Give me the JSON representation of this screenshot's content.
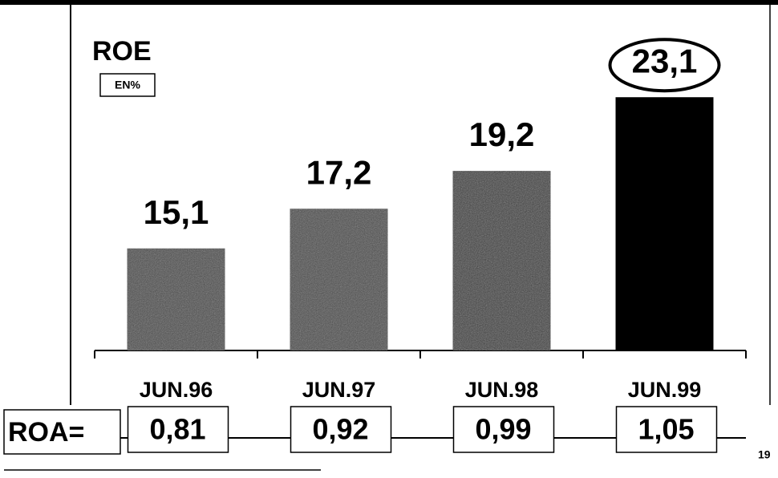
{
  "chart_data": {
    "type": "bar",
    "title": "ROE",
    "subtitle": "EN%",
    "categories": [
      "JUN.96",
      "JUN.97",
      "JUN.98",
      "JUN.99"
    ],
    "values": [
      15.1,
      17.2,
      19.2,
      23.1
    ],
    "value_labels": [
      "15,1",
      "17,2",
      "19,2",
      "23,1"
    ],
    "colors": [
      "#4a4a4a",
      "#4a4a4a",
      "#3a3a3a",
      "#000000"
    ],
    "ylim": [
      9.7,
      24
    ],
    "roa": {
      "label": "ROA=",
      "values": [
        0.81,
        0.92,
        0.99,
        1.05
      ],
      "value_labels": [
        "0,81",
        "0,92",
        "0,99",
        "1,05"
      ]
    },
    "page_number": "19"
  }
}
